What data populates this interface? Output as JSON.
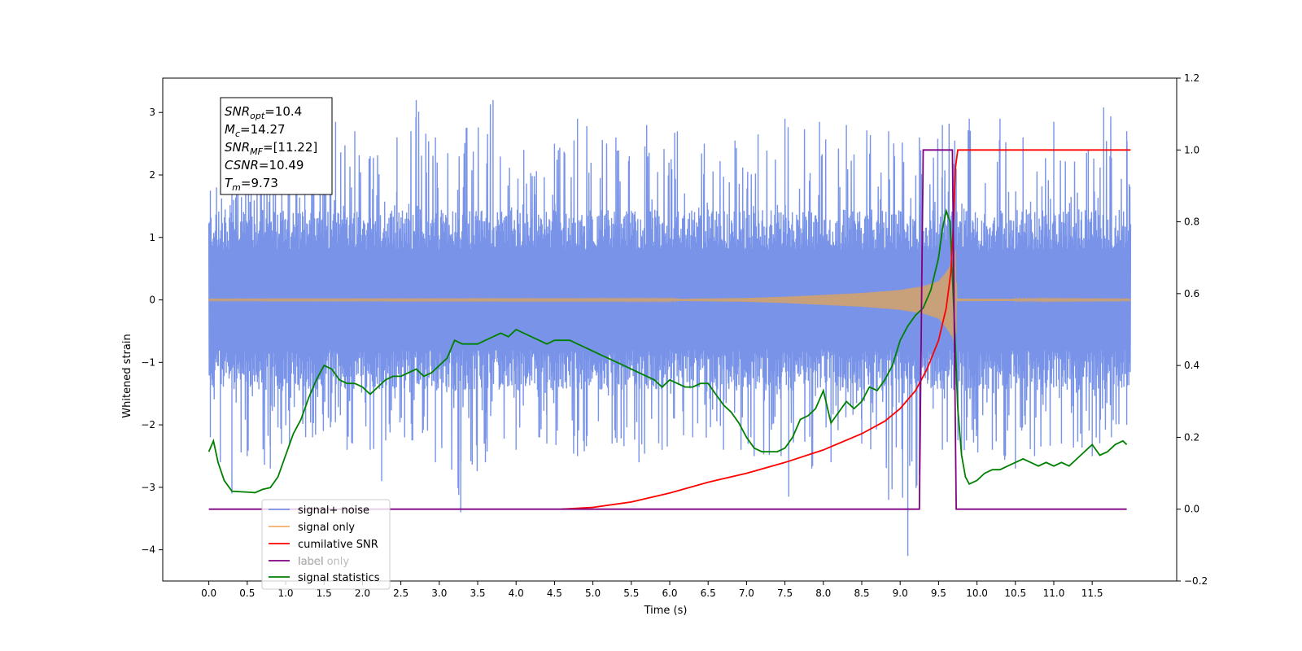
{
  "chart_data": {
    "type": "line",
    "xlabel": "Time (s)",
    "ylabel": "Whitened strain",
    "xlim": [
      -0.6,
      12.6
    ],
    "ylim": [
      -4.5,
      3.55
    ],
    "y2lim": [
      -0.2,
      1.2
    ],
    "x_ticks": [
      0.0,
      0.5,
      1.0,
      1.5,
      2.0,
      2.5,
      3.0,
      3.5,
      4.0,
      4.5,
      5.0,
      5.5,
      6.0,
      6.5,
      7.0,
      7.5,
      8.0,
      8.5,
      9.0,
      9.5,
      10.0,
      10.5,
      11.0,
      11.5
    ],
    "x_tick_labels": [
      "0.0",
      "0.5",
      "1.0",
      "1.5",
      "2.0",
      "2.5",
      "3.0",
      "3.5",
      "4.0",
      "4.5",
      "5.0",
      "5.5",
      "6.0",
      "6.5",
      "7.0",
      "7.5",
      "8.0",
      "8.5",
      "9.0",
      "9.5",
      "10.0",
      "10.5",
      "11.0",
      "11.5"
    ],
    "y_ticks": [
      -4,
      -3,
      -2,
      -1,
      0,
      1,
      2,
      3
    ],
    "y_tick_labels": [
      "−4",
      "−3",
      "−2",
      "−1",
      "0",
      "1",
      "2",
      "3"
    ],
    "y2_ticks": [
      -0.2,
      0.0,
      0.2,
      0.4,
      0.6,
      0.8,
      1.0,
      1.2
    ],
    "y2_tick_labels": [
      "−0.2",
      "0.0",
      "0.2",
      "0.4",
      "0.6",
      "0.8",
      "1.0",
      "1.2"
    ],
    "colors": {
      "noise": "#7893e8",
      "signal": "#f3b06a",
      "signal_fill": "#c8a07a",
      "cumulative_snr": "#ff0000",
      "label": "#800080",
      "statistics": "#008000"
    },
    "annotation": {
      "lines": [
        {
          "base": "SNR",
          "sub": "opt",
          "value": "=10.4"
        },
        {
          "base": "M",
          "sub": "c",
          "value": "=14.27"
        },
        {
          "base": "SNR",
          "sub": "MF",
          "value": "=[11.22]"
        },
        {
          "base": "CSNR",
          "sub": "",
          "value": "=10.49"
        },
        {
          "base": "T",
          "sub": "m",
          "value": "=9.73"
        }
      ]
    },
    "legend": {
      "placement": "lower-left",
      "entries": [
        "signal+ noise",
        "signal only",
        "cumilative SNR",
        "label",
        "label only",
        "signal statistics"
      ]
    },
    "series": [
      {
        "name": "signal+ noise",
        "axis": "left",
        "x_start": 0.0,
        "x_end": 12.0,
        "envelope_upper": 1.45,
        "envelope_lower": -1.45,
        "peaks_upper": [
          [
            0.02,
            1.75
          ],
          [
            0.1,
            1.8
          ],
          [
            0.3,
            1.7
          ],
          [
            0.55,
            2.0
          ],
          [
            0.95,
            2.2
          ],
          [
            1.05,
            2.4
          ],
          [
            1.25,
            2.8
          ],
          [
            1.65,
            2.85
          ],
          [
            1.9,
            2.7
          ],
          [
            2.1,
            2.3
          ],
          [
            2.45,
            2.6
          ],
          [
            2.7,
            3.2
          ],
          [
            2.95,
            2.6
          ],
          [
            3.35,
            2.75
          ],
          [
            3.7,
            3.2
          ],
          [
            4.1,
            2.4
          ],
          [
            4.5,
            2.5
          ],
          [
            4.8,
            2.9
          ],
          [
            5.3,
            2.6
          ],
          [
            5.7,
            2.8
          ],
          [
            6.1,
            2.7
          ],
          [
            6.45,
            2.5
          ],
          [
            6.85,
            2.55
          ],
          [
            7.15,
            2.65
          ],
          [
            7.5,
            2.9
          ],
          [
            7.95,
            2.85
          ],
          [
            8.3,
            2.8
          ],
          [
            8.85,
            2.7
          ],
          [
            9.25,
            2.6
          ],
          [
            9.55,
            2.8
          ],
          [
            9.9,
            2.9
          ],
          [
            10.3,
            2.9
          ],
          [
            10.6,
            2.6
          ],
          [
            11.0,
            2.85
          ],
          [
            11.45,
            2.4
          ],
          [
            11.65,
            3.08
          ],
          [
            11.95,
            2.7
          ]
        ],
        "peaks_lower": [
          [
            0.02,
            -2.2
          ],
          [
            0.15,
            -2.6
          ],
          [
            0.3,
            -3.1
          ],
          [
            0.5,
            -2.5
          ],
          [
            0.8,
            -2.7
          ],
          [
            1.05,
            -2.3
          ],
          [
            1.35,
            -2.2
          ],
          [
            1.8,
            -2.4
          ],
          [
            2.1,
            -2.4
          ],
          [
            2.25,
            -2.9
          ],
          [
            2.55,
            -2.2
          ],
          [
            2.95,
            -2.6
          ],
          [
            3.28,
            -3.4
          ],
          [
            3.6,
            -2.6
          ],
          [
            4.0,
            -2.4
          ],
          [
            4.4,
            -2.3
          ],
          [
            4.8,
            -2.5
          ],
          [
            5.25,
            -2.3
          ],
          [
            5.6,
            -2.6
          ],
          [
            5.9,
            -2.4
          ],
          [
            6.3,
            -2.2
          ],
          [
            6.7,
            -2.4
          ],
          [
            7.1,
            -2.5
          ],
          [
            7.45,
            -2.5
          ],
          [
            7.55,
            -3.15
          ],
          [
            7.85,
            -2.7
          ],
          [
            8.1,
            -2.6
          ],
          [
            8.5,
            -2.3
          ],
          [
            8.85,
            -3.2
          ],
          [
            9.1,
            -4.1
          ],
          [
            9.25,
            -2.8
          ],
          [
            9.55,
            -2.4
          ],
          [
            9.8,
            -2.5
          ],
          [
            10.2,
            -2.4
          ],
          [
            10.5,
            -2.7
          ],
          [
            10.75,
            -2.5
          ],
          [
            11.1,
            -2.3
          ],
          [
            11.5,
            -2.5
          ],
          [
            11.75,
            -2.2
          ],
          [
            11.95,
            -2.0
          ]
        ]
      },
      {
        "name": "signal only",
        "axis": "left",
        "x": [
          0.0,
          6.0,
          7.0,
          7.5,
          8.0,
          8.5,
          9.0,
          9.3,
          9.5,
          9.6,
          9.68,
          9.72,
          9.74,
          12.0
        ],
        "amplitude": [
          0.01,
          0.015,
          0.03,
          0.05,
          0.08,
          0.11,
          0.16,
          0.22,
          0.3,
          0.45,
          0.6,
          0.8,
          0.02,
          0.01
        ]
      },
      {
        "name": "cumilative SNR",
        "axis": "right",
        "x": [
          4.6,
          5.0,
          5.5,
          6.0,
          6.5,
          7.0,
          7.5,
          8.0,
          8.5,
          8.8,
          9.0,
          9.2,
          9.35,
          9.5,
          9.6,
          9.66,
          9.69,
          9.72,
          9.75,
          12.0
        ],
        "y": [
          0.0,
          0.005,
          0.02,
          0.045,
          0.075,
          0.1,
          0.13,
          0.165,
          0.21,
          0.245,
          0.28,
          0.33,
          0.39,
          0.47,
          0.56,
          0.66,
          0.78,
          0.95,
          1.0,
          1.0
        ]
      },
      {
        "name": "label",
        "axis": "right",
        "x": [
          0.0,
          9.25,
          9.3,
          9.68,
          9.73,
          11.95
        ],
        "y": [
          0.0,
          0.0,
          1.0,
          1.0,
          0.0,
          0.0
        ]
      },
      {
        "name": "signal statistics",
        "axis": "right",
        "x": [
          0.0,
          0.06,
          0.12,
          0.2,
          0.3,
          0.45,
          0.55,
          0.6,
          0.7,
          0.8,
          0.9,
          1.0,
          1.1,
          1.2,
          1.3,
          1.4,
          1.5,
          1.6,
          1.7,
          1.8,
          1.9,
          2.0,
          2.1,
          2.2,
          2.3,
          2.4,
          2.5,
          2.6,
          2.7,
          2.8,
          2.9,
          3.0,
          3.1,
          3.2,
          3.3,
          3.4,
          3.5,
          3.6,
          3.7,
          3.8,
          3.9,
          4.0,
          4.1,
          4.2,
          4.3,
          4.4,
          4.5,
          4.6,
          4.7,
          4.8,
          4.9,
          5.0,
          5.1,
          5.2,
          5.3,
          5.4,
          5.5,
          5.6,
          5.7,
          5.8,
          5.9,
          6.0,
          6.1,
          6.2,
          6.3,
          6.4,
          6.5,
          6.6,
          6.7,
          6.8,
          6.9,
          7.0,
          7.1,
          7.2,
          7.3,
          7.4,
          7.5,
          7.6,
          7.7,
          7.8,
          7.9,
          8.0,
          8.1,
          8.2,
          8.3,
          8.4,
          8.5,
          8.6,
          8.7,
          8.8,
          8.9,
          9.0,
          9.1,
          9.2,
          9.3,
          9.4,
          9.5,
          9.55,
          9.6,
          9.65,
          9.7,
          9.75,
          9.8,
          9.85,
          9.9,
          10.0,
          10.1,
          10.2,
          10.3,
          10.4,
          10.5,
          10.6,
          10.7,
          10.8,
          10.9,
          11.0,
          11.1,
          11.2,
          11.3,
          11.4,
          11.5,
          11.6,
          11.7,
          11.8,
          11.9,
          11.95
        ],
        "y": [
          0.16,
          0.19,
          0.13,
          0.08,
          0.05,
          0.048,
          0.047,
          0.046,
          0.055,
          0.06,
          0.09,
          0.15,
          0.21,
          0.25,
          0.31,
          0.36,
          0.4,
          0.39,
          0.36,
          0.35,
          0.35,
          0.34,
          0.32,
          0.34,
          0.36,
          0.37,
          0.37,
          0.38,
          0.39,
          0.37,
          0.38,
          0.4,
          0.42,
          0.47,
          0.46,
          0.46,
          0.46,
          0.47,
          0.48,
          0.49,
          0.48,
          0.5,
          0.49,
          0.48,
          0.47,
          0.46,
          0.47,
          0.47,
          0.47,
          0.46,
          0.45,
          0.44,
          0.43,
          0.42,
          0.41,
          0.4,
          0.39,
          0.38,
          0.37,
          0.36,
          0.34,
          0.36,
          0.35,
          0.34,
          0.34,
          0.35,
          0.35,
          0.32,
          0.29,
          0.27,
          0.24,
          0.2,
          0.17,
          0.16,
          0.16,
          0.16,
          0.17,
          0.2,
          0.25,
          0.26,
          0.28,
          0.33,
          0.24,
          0.27,
          0.3,
          0.28,
          0.3,
          0.34,
          0.33,
          0.36,
          0.4,
          0.47,
          0.51,
          0.54,
          0.56,
          0.61,
          0.7,
          0.78,
          0.83,
          0.8,
          0.55,
          0.28,
          0.15,
          0.09,
          0.07,
          0.08,
          0.1,
          0.11,
          0.11,
          0.12,
          0.13,
          0.14,
          0.13,
          0.12,
          0.13,
          0.12,
          0.13,
          0.12,
          0.14,
          0.16,
          0.18,
          0.15,
          0.16,
          0.18,
          0.19,
          0.18
        ]
      }
    ]
  }
}
